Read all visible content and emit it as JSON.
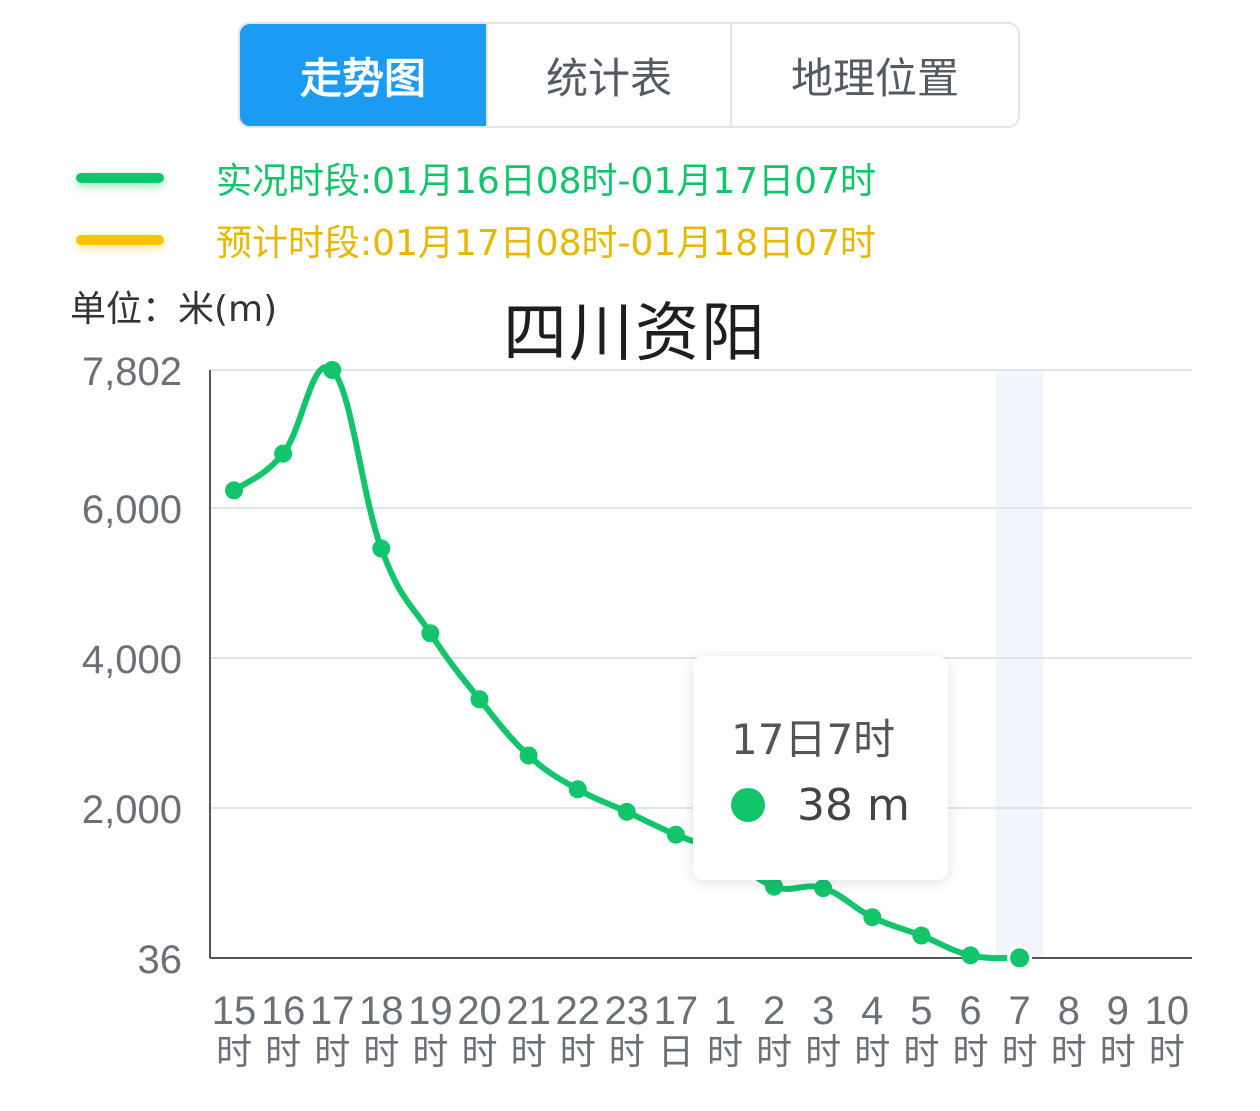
{
  "tabs": [
    {
      "label": "走势图",
      "active": true
    },
    {
      "label": "统计表",
      "active": false
    },
    {
      "label": "地理位置",
      "active": false
    }
  ],
  "legend": {
    "observed": "实况时段:01月16日08时-01月17日07时",
    "forecast": "预计时段:01月17日08时-01月18日07时"
  },
  "unit_label": "单位：米(m)",
  "tooltip": {
    "time": "17日7时",
    "value": "38",
    "unit": "m"
  },
  "colors": {
    "accent": "#1a9cf5",
    "observed": "#12c46a",
    "forecast": "#f5c400"
  },
  "chart_data": {
    "type": "line",
    "title": "四川资阳",
    "ylabel": "单位：米(m)",
    "yticks": [
      36,
      2000,
      4000,
      6000,
      7802
    ],
    "ytick_labels": [
      "36",
      "2,000",
      "4,000",
      "6,000",
      "7,802"
    ],
    "ylim": [
      36,
      7802
    ],
    "categories": [
      [
        "15",
        "时"
      ],
      [
        "16",
        "时"
      ],
      [
        "17",
        "时"
      ],
      [
        "18",
        "时"
      ],
      [
        "19",
        "时"
      ],
      [
        "20",
        "时"
      ],
      [
        "21",
        "时"
      ],
      [
        "22",
        "时"
      ],
      [
        "23",
        "时"
      ],
      [
        "17",
        "日"
      ],
      [
        "1",
        "时"
      ],
      [
        "2",
        "时"
      ],
      [
        "3",
        "时"
      ],
      [
        "4",
        "时"
      ],
      [
        "5",
        "时"
      ],
      [
        "6",
        "时"
      ],
      [
        "7",
        "时"
      ],
      [
        "8",
        "时"
      ],
      [
        "9",
        "时"
      ],
      [
        "10",
        "时"
      ]
    ],
    "series": [
      {
        "values": [
          6230,
          6710,
          7802,
          5460,
          4330,
          3450,
          2700,
          2250,
          1950,
          1650,
          1400,
          970,
          950,
          570,
          330,
          70,
          38,
          null,
          null,
          null
        ]
      }
    ],
    "highlight_index": 16,
    "grid": true
  }
}
